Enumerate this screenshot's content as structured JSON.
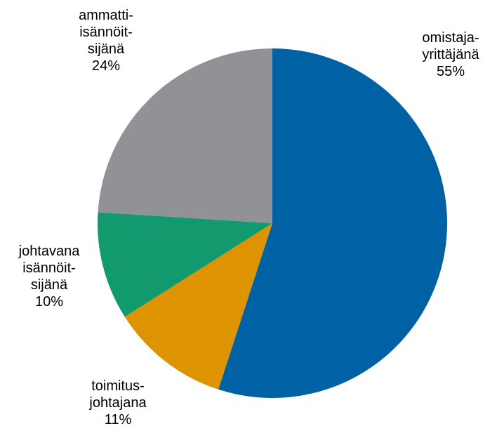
{
  "chart_data": {
    "type": "pie",
    "start_angle_deg": 0,
    "direction": "clockwise",
    "slices": [
      {
        "label_lines": [
          "omistaja-",
          "yrittäjänä"
        ],
        "value": 55,
        "value_label": "55%",
        "color": "#0061a4"
      },
      {
        "label_lines": [
          "toimitus-",
          "johtajana"
        ],
        "value": 11,
        "value_label": "11%",
        "color": "#de9300"
      },
      {
        "label_lines": [
          "johtavana",
          "isännöit-",
          "sijänä"
        ],
        "value": 10,
        "value_label": "10%",
        "color": "#12996e"
      },
      {
        "label_lines": [
          "ammatti-",
          "isännöit-",
          "sijänä"
        ],
        "value": 24,
        "value_label": "24%",
        "color": "#919296"
      }
    ]
  }
}
